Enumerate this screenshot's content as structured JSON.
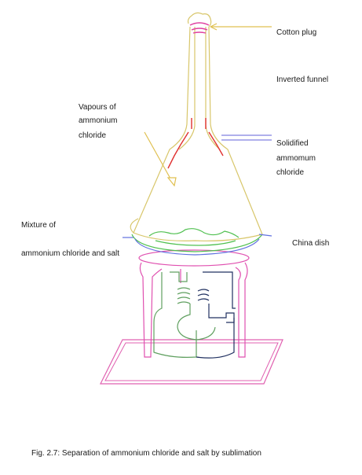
{
  "labels": {
    "cotton_plug": "Cotton plug",
    "inverted_funnel": "Inverted funnel",
    "vapours_line1": "Vapours of",
    "vapours_line2": "ammonium",
    "vapours_line3": "chloride",
    "solidified_line1": "Solidified",
    "solidified_line2": "ammomum",
    "solidified_line3": "chloride",
    "mixture_line1": "Mixture of",
    "mixture_line2": "ammonium chloride and salt",
    "china_dish": "China dish"
  },
  "caption": "Fig. 2.7: Separation of ammonium chloride and salt by sublimation",
  "colors": {
    "funnel": "#d8c66a",
    "plug": "#e040a0",
    "pointer_yellow": "#e0c050",
    "pointer_blue": "#8080e0",
    "solid_red": "#e03030",
    "dish_green": "#50c050",
    "dish_blue": "#6070e0",
    "stand_pink": "#e050b0",
    "burner_green": "#60a060",
    "burner_navy": "#203060",
    "base_pink": "#e060b0",
    "text": "#1a1a1a"
  }
}
